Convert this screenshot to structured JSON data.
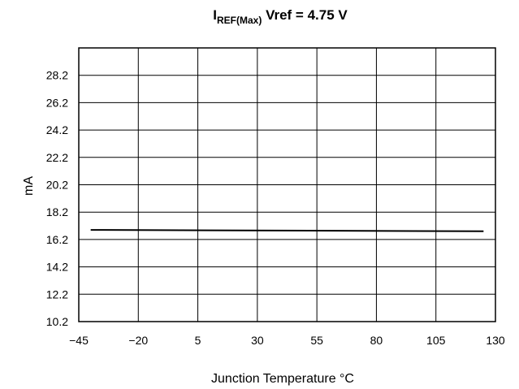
{
  "chart_data": {
    "type": "line",
    "title_main": "I",
    "title_sub": "REF(Max)",
    "title_rest": " Vref = 4.75 V",
    "xlabel": "Junction Temperature °C",
    "ylabel": "mA",
    "xlim": [
      -45,
      130
    ],
    "ylim": [
      10.2,
      30.2
    ],
    "x_ticks": [
      "−45",
      "−20",
      "5",
      "30",
      "55",
      "80",
      "105",
      "130"
    ],
    "y_ticks": [
      "10.2",
      "12.2",
      "14.2",
      "16.2",
      "18.2",
      "20.2",
      "22.2",
      "24.2",
      "26.2",
      "28.2"
    ],
    "grid": true,
    "series": [
      {
        "x": [
          -40,
          125
        ],
        "y": [
          16.9,
          16.8
        ],
        "color": "#000000"
      }
    ]
  }
}
